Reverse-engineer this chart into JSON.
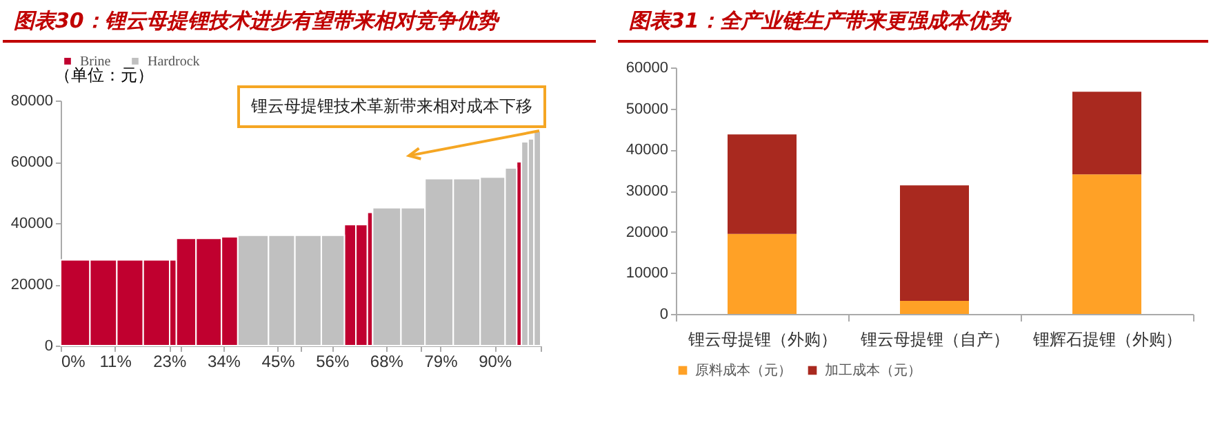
{
  "chart_data": [
    {
      "type": "histogram",
      "title": "图表30：锂云母提锂技术进步有望带来相对竞争优势",
      "ylabel": "（单位：元）",
      "bins": [
        0,
        6.1,
        11.7,
        17.2,
        22.7,
        24.1,
        28.2,
        33.5,
        36.9,
        43.3,
        48.8,
        54.3,
        59.1,
        61.5,
        63.9,
        65.0,
        70.9,
        75.9,
        81.8,
        87.4,
        92.6,
        95.0,
        96.0,
        97.4,
        98.6,
        100
      ],
      "series": [
        {
          "name": "Brine",
          "color": "#c0002f",
          "values": [
            28000,
            28000,
            28000,
            28000,
            28000,
            35000,
            35000,
            35500,
            null,
            null,
            null,
            null,
            39500,
            39500,
            43500,
            null,
            null,
            null,
            null,
            null,
            null,
            60000,
            null,
            null,
            null
          ]
        },
        {
          "name": "Hardrock",
          "color": "#c0c0c0",
          "values": [
            null,
            null,
            null,
            null,
            null,
            null,
            null,
            null,
            36000,
            36000,
            36000,
            36000,
            null,
            null,
            null,
            45000,
            45000,
            54500,
            54500,
            55000,
            58000,
            null,
            66500,
            67500,
            70000
          ]
        }
      ],
      "xlim": [
        0,
        100
      ],
      "xticks": [
        {
          "value": 0,
          "label": "0%"
        },
        {
          "value": 11.3,
          "label": "11%"
        },
        {
          "value": 22.6,
          "label": "23%"
        },
        {
          "value": 33.9,
          "label": "34%"
        },
        {
          "value": 45.2,
          "label": "45%"
        },
        {
          "value": 56.5,
          "label": "56%"
        },
        {
          "value": 67.8,
          "label": "68%"
        },
        {
          "value": 79.1,
          "label": "79%"
        },
        {
          "value": 90.4,
          "label": "90%"
        },
        {
          "value": 25,
          "label": null
        },
        {
          "value": 50,
          "label": null
        },
        {
          "value": 75,
          "label": null
        },
        {
          "value": 100,
          "label": null
        }
      ],
      "ylim": [
        0,
        80000
      ],
      "yticks": [
        0,
        20000,
        40000,
        60000,
        80000
      ],
      "annotations": [
        "锂云母提锂技术革新带来相对成本下移"
      ],
      "legend": "top",
      "grid": false
    },
    {
      "type": "bar",
      "title": "图表31：全产业链生产带来更强成本优势",
      "stacked": true,
      "categories": [
        "锂云母提锂（外购）",
        "锂云母提锂（自产）",
        "锂辉石提锂（外购）"
      ],
      "series": [
        {
          "name": "原料成本（元）",
          "color": "#ffa126",
          "values": [
            19500,
            3200,
            34000
          ]
        },
        {
          "name": "加工成本（元）",
          "color": "#a9291f",
          "values": [
            24200,
            28100,
            20100
          ]
        }
      ],
      "ylim": [
        0,
        60000
      ],
      "yticks": [
        0,
        10000,
        20000,
        30000,
        40000,
        50000,
        60000
      ],
      "legend": "bottom",
      "grid": false
    }
  ]
}
